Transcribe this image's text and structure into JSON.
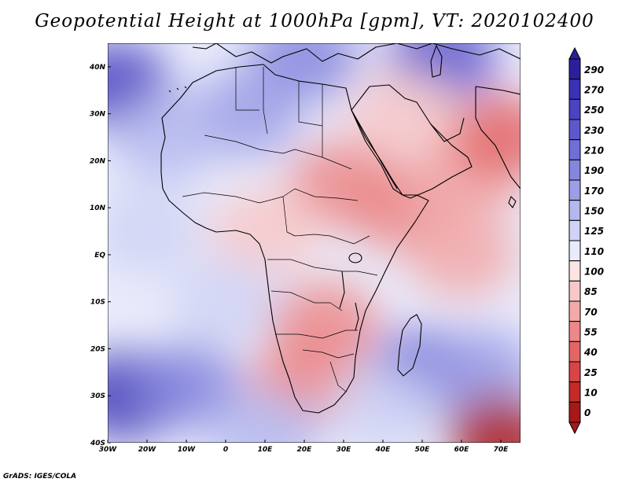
{
  "title": "Geopotential Height at 1000hPa [gpm], VT: 2020102400",
  "footer": "GrADS: IGES/COLA",
  "chart_data": {
    "type": "heatmap",
    "variable": "Geopotential Height",
    "level": "1000hPa",
    "units": "gpm",
    "valid_time": "2020102400",
    "x_range": [
      -30,
      75
    ],
    "y_range": [
      -40,
      45
    ],
    "x_ticks": [
      {
        "value": -30,
        "label": "30W"
      },
      {
        "value": -20,
        "label": "20W"
      },
      {
        "value": -10,
        "label": "10W"
      },
      {
        "value": 0,
        "label": "0"
      },
      {
        "value": 10,
        "label": "10E"
      },
      {
        "value": 20,
        "label": "20E"
      },
      {
        "value": 30,
        "label": "30E"
      },
      {
        "value": 40,
        "label": "40E"
      },
      {
        "value": 50,
        "label": "50E"
      },
      {
        "value": 60,
        "label": "60E"
      },
      {
        "value": 70,
        "label": "70E"
      }
    ],
    "y_ticks": [
      {
        "value": 40,
        "label": "40N"
      },
      {
        "value": 30,
        "label": "30N"
      },
      {
        "value": 20,
        "label": "20N"
      },
      {
        "value": 10,
        "label": "10N"
      },
      {
        "value": 0,
        "label": "EQ"
      },
      {
        "value": -10,
        "label": "10S"
      },
      {
        "value": -20,
        "label": "20S"
      },
      {
        "value": -30,
        "label": "30S"
      },
      {
        "value": -40,
        "label": "40S"
      }
    ],
    "colorbar": {
      "levels": [
        290,
        270,
        250,
        230,
        210,
        190,
        170,
        150,
        125,
        110,
        100,
        85,
        70,
        55,
        40,
        25,
        10,
        0
      ],
      "colors": [
        "#2b1f9c",
        "#3a31b5",
        "#4a43c2",
        "#5c58cc",
        "#6f6fd6",
        "#8586de",
        "#9c9ee6",
        "#b5b8ee",
        "#d0d3f5",
        "#e9ebfb",
        "#fbe4e4",
        "#f8c8c8",
        "#f2a9a9",
        "#ec8888",
        "#e46565",
        "#d84545",
        "#c42a2a",
        "#a81818"
      ]
    },
    "fields": [
      {
        "lon": -28,
        "lat": 36,
        "value": 250
      },
      {
        "lon": -25,
        "lat": -30,
        "value": 270
      },
      {
        "lon": -10,
        "lat": -28,
        "value": 190
      },
      {
        "lon": 50,
        "lat": -25,
        "value": 210
      },
      {
        "lon": 65,
        "lat": -25,
        "value": 170
      },
      {
        "lon": 20,
        "lat": 42,
        "value": 200
      },
      {
        "lon": 55,
        "lat": 42,
        "value": 230
      },
      {
        "lon": 5,
        "lat": 30,
        "value": 170
      },
      {
        "lon": -15,
        "lat": 25,
        "value": 150
      },
      {
        "lon": -20,
        "lat": 5,
        "value": 125
      },
      {
        "lon": 30,
        "lat": 15,
        "value": 55
      },
      {
        "lon": 45,
        "lat": 10,
        "value": 60
      },
      {
        "lon": 60,
        "lat": 15,
        "value": 70
      },
      {
        "lon": 70,
        "lat": 25,
        "value": 45
      },
      {
        "lon": 60,
        "lat": 0,
        "value": 75
      },
      {
        "lon": 25,
        "lat": -15,
        "value": 60
      },
      {
        "lon": 20,
        "lat": -27,
        "value": 65
      },
      {
        "lon": 10,
        "lat": 5,
        "value": 85
      },
      {
        "lon": 70,
        "lat": -39,
        "value": 5
      },
      {
        "lon": 0,
        "lat": -10,
        "value": 125
      },
      {
        "lon": 10,
        "lat": -38,
        "value": 150
      },
      {
        "lon": 40,
        "lat": -33,
        "value": 140
      },
      {
        "lon": 45,
        "lat": 30,
        "value": 95
      }
    ]
  }
}
